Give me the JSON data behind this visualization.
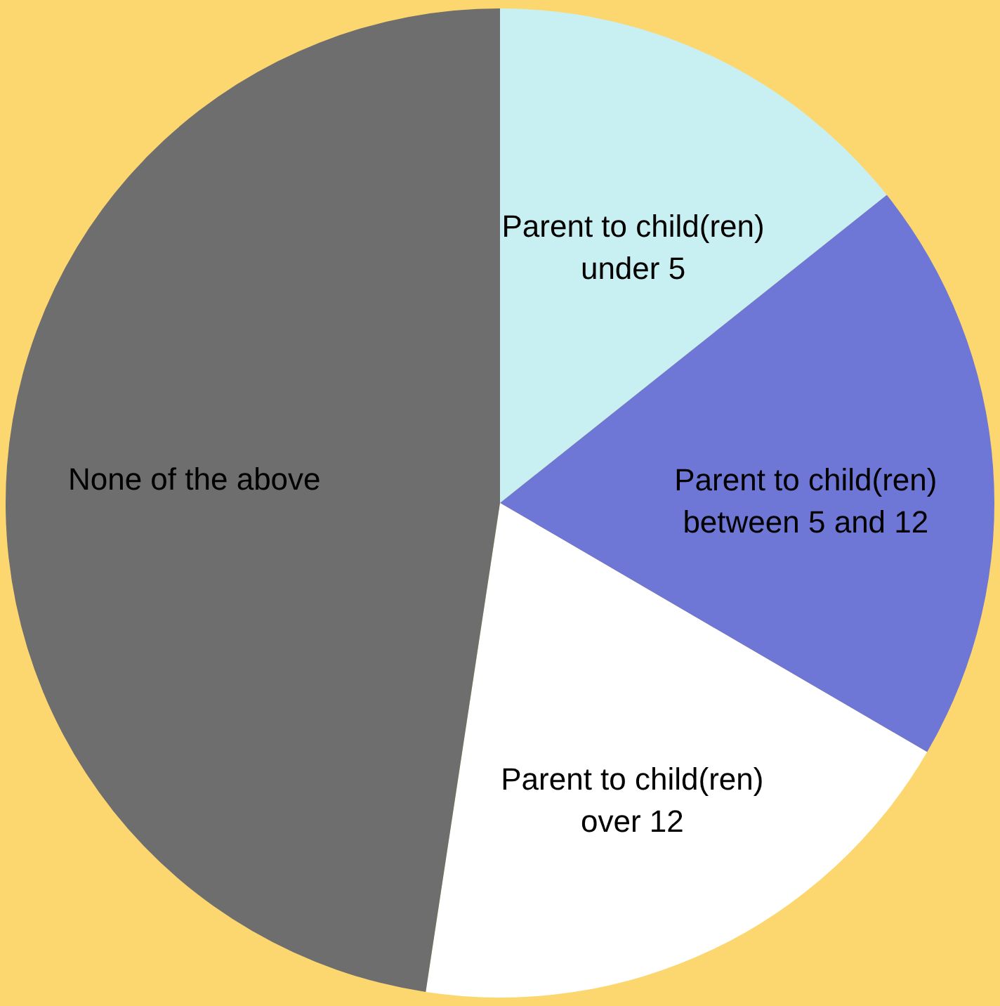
{
  "chart_data": {
    "type": "pie",
    "categories": [
      "Parent to child(ren) under 5",
      "Parent to child(ren) between 5 and 12",
      "Parent to child(ren) over 12",
      "None of the above"
    ],
    "values": [
      14.3,
      19.1,
      19.0,
      47.6
    ],
    "colors": [
      "#c8f0f2",
      "#6f77d6",
      "#ffffff",
      "#6e6e6e"
    ]
  }
}
